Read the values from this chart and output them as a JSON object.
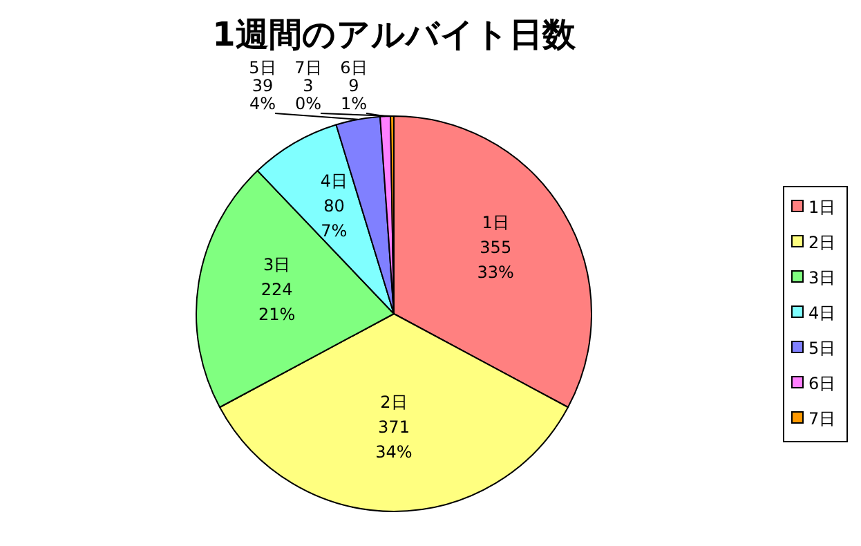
{
  "chart_data": {
    "type": "pie",
    "title": "1週間のアルバイト日数",
    "categories": [
      "1日",
      "2日",
      "3日",
      "4日",
      "5日",
      "6日",
      "7日"
    ],
    "values": [
      355,
      371,
      224,
      80,
      39,
      9,
      3
    ],
    "annotations": [
      "33%",
      "34%",
      "21%",
      "7%",
      "4%",
      "1%",
      "0%"
    ],
    "data_labels": true,
    "colors": [
      "#ff8080",
      "#ffff80",
      "#80ff80",
      "#80ffff",
      "#8080ff",
      "#ff80ff",
      "#ff9900"
    ],
    "legend": "right"
  }
}
